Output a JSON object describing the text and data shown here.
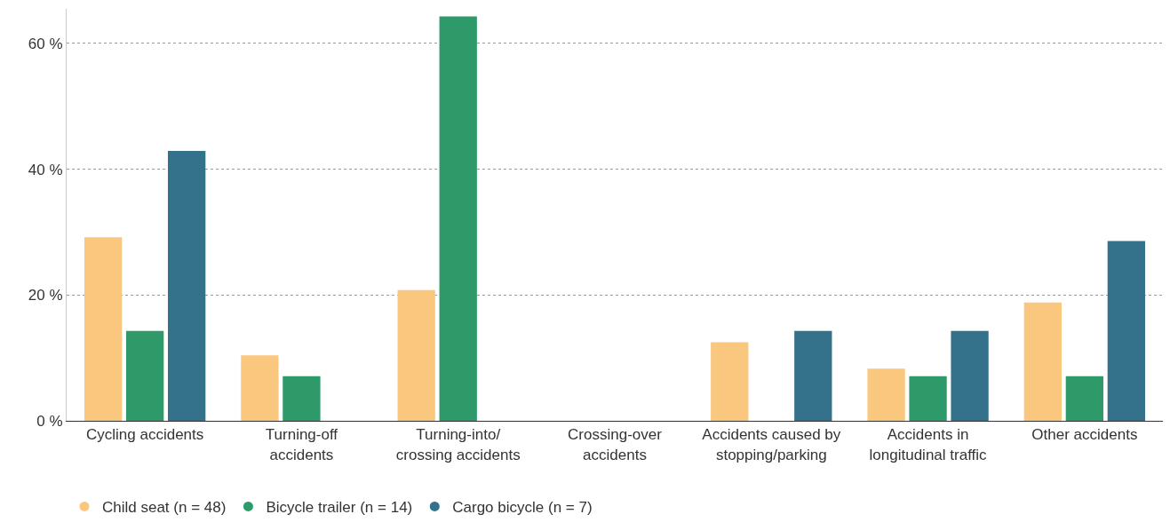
{
  "chart_data": {
    "type": "bar",
    "categories": [
      "Cycling accidents",
      "Turning-off accidents",
      "Turning-into/crossing accidents",
      "Crossing-over accidents",
      "Accidents caused by stopping/parking",
      "Accidents in longitudinal traffic",
      "Other accidents"
    ],
    "series": [
      {
        "name": "Child seat (n = 48)",
        "color": "#f9c77e",
        "values": [
          29.2,
          10.4,
          20.8,
          0,
          12.5,
          8.3,
          18.8
        ]
      },
      {
        "name": "Bicycle trailer (n = 14)",
        "color": "#2e9a6a",
        "values": [
          14.3,
          7.1,
          64.3,
          0,
          0,
          7.1,
          7.1
        ]
      },
      {
        "name": "Cargo bicycle (n = 7)",
        "color": "#33728a",
        "values": [
          42.9,
          0,
          0,
          0,
          14.3,
          14.3,
          28.6
        ]
      }
    ],
    "ylim": [
      0,
      65.5
    ],
    "yticks": [
      {
        "value": 0,
        "label": "0 %"
      },
      {
        "value": 20,
        "label": "20 %"
      },
      {
        "value": 40,
        "label": "40 %"
      },
      {
        "value": 60,
        "label": "60 %"
      }
    ],
    "grid": "y",
    "legend": "bottom left",
    "marker": "circle"
  }
}
